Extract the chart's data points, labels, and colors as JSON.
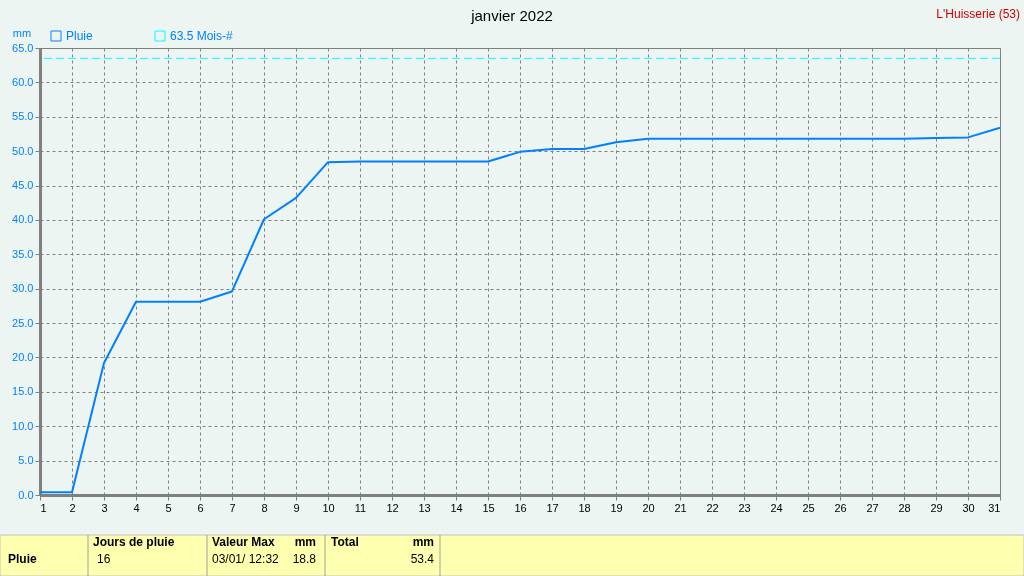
{
  "chart_data": {
    "type": "line",
    "title": "janvier 2022",
    "subtitle": "L'Huisserie (53)",
    "ylabel": "mm",
    "x": [
      1,
      2,
      3,
      4,
      5,
      6,
      7,
      8,
      9,
      10,
      11,
      12,
      13,
      14,
      15,
      16,
      17,
      18,
      19,
      20,
      21,
      22,
      23,
      24,
      25,
      26,
      27,
      28,
      29,
      30,
      31
    ],
    "series": [
      {
        "name": "Pluie",
        "color": "#0080ff",
        "values": [
          0.4,
          0.4,
          19.2,
          28.1,
          28.1,
          28.1,
          29.6,
          40.1,
          43.2,
          48.4,
          48.5,
          48.5,
          48.5,
          48.5,
          48.5,
          49.9,
          50.3,
          50.3,
          51.3,
          51.8,
          51.8,
          51.8,
          51.8,
          51.8,
          51.8,
          51.8,
          51.8,
          51.8,
          51.9,
          52.0,
          53.4
        ]
      }
    ],
    "xlim": [
      1,
      31
    ],
    "xticks": [
      1,
      2,
      3,
      4,
      5,
      6,
      7,
      8,
      9,
      10,
      11,
      12,
      13,
      14,
      15,
      16,
      17,
      18,
      19,
      20,
      21,
      22,
      23,
      24,
      25,
      26,
      27,
      28,
      29,
      30,
      31
    ],
    "ylim": [
      0,
      65
    ],
    "yticks": [
      {
        "value": 0,
        "label": "0.0"
      },
      {
        "value": 5,
        "label": "5.0"
      },
      {
        "value": 10,
        "label": "10.0"
      },
      {
        "value": 15,
        "label": "15.0"
      },
      {
        "value": 20,
        "label": "20.0"
      },
      {
        "value": 25,
        "label": "25.0"
      },
      {
        "value": 30,
        "label": "30.0"
      },
      {
        "value": 35,
        "label": "35.0"
      },
      {
        "value": 40,
        "label": "40.0"
      },
      {
        "value": 45,
        "label": "45.0"
      },
      {
        "value": 50,
        "label": "50.0"
      },
      {
        "value": 55,
        "label": "55.0"
      },
      {
        "value": 60,
        "label": "60.0"
      },
      {
        "value": 65,
        "label": "65.0"
      }
    ],
    "ref_lines": [
      {
        "axis": "y",
        "value": 63.5,
        "label": "63.5 Mois-#",
        "color": "#00ffff",
        "line_style": "dashed"
      }
    ],
    "grid": true,
    "legend": "top left",
    "marker": "none",
    "line_style": "solid",
    "annotations": [
      "Pluie",
      "Jours de pluie",
      "16",
      "Valeur Max",
      "mm",
      "03/01/ 12:32",
      "18.8",
      "Total",
      "mm",
      "53.4"
    ]
  }
}
